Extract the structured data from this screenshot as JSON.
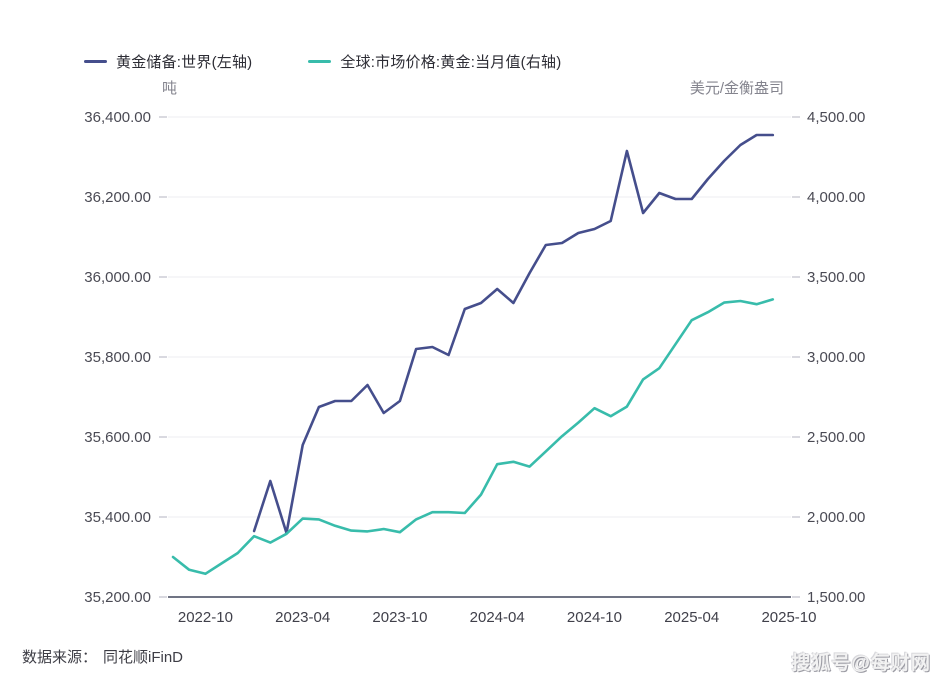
{
  "footer": {
    "source_label": "数据来源：",
    "source_value": "同花顺iFinD",
    "watermark": "搜狐号@每财网"
  },
  "chart_data": {
    "type": "line",
    "title": "",
    "legend_position": "top-left",
    "grid": true,
    "legend": [
      {
        "label": "黄金储备:世界(左轴)",
        "color": "#454e8c"
      },
      {
        "label": "全球:市场价格:黄金:当月值(右轴)",
        "color": "#38bcab"
      }
    ],
    "left_axis": {
      "unit": "吨",
      "min": 35200,
      "max": 36400,
      "tick_values": [
        36400,
        36200,
        36000,
        35800,
        35600,
        35400,
        35200
      ],
      "tick_labels": [
        "36,400.00",
        "36,200.00",
        "36,000.00",
        "35,800.00",
        "35,600.00",
        "35,400.00",
        "35,200.00"
      ]
    },
    "right_axis": {
      "unit": "美元/金衡盎司",
      "min": 1500,
      "max": 4500,
      "tick_values": [
        4500,
        4000,
        3500,
        3000,
        2500,
        2000,
        1500
      ],
      "tick_labels": [
        "4,500.00",
        "4,000.00",
        "3,500.00",
        "3,000.00",
        "2,500.00",
        "2,000.00",
        "1,500.00"
      ]
    },
    "x_axis": {
      "tick_labels": [
        "2022-10",
        "2023-04",
        "2023-10",
        "2024-04",
        "2024-10",
        "2025-04",
        "2025-10"
      ],
      "tick_indices": [
        2,
        8,
        14,
        20,
        26,
        32,
        38
      ]
    },
    "categories": [
      "2022-08",
      "2022-09",
      "2022-10",
      "2022-11",
      "2022-12",
      "2023-01",
      "2023-02",
      "2023-03",
      "2023-04",
      "2023-05",
      "2023-06",
      "2023-07",
      "2023-08",
      "2023-09",
      "2023-10",
      "2023-11",
      "2023-12",
      "2024-01",
      "2024-02",
      "2024-03",
      "2024-04",
      "2024-05",
      "2024-06",
      "2024-07",
      "2024-08",
      "2024-09",
      "2024-10",
      "2024-11",
      "2024-12",
      "2025-01",
      "2025-02",
      "2025-03",
      "2025-04",
      "2025-05",
      "2025-06",
      "2025-07",
      "2025-08",
      "2025-09"
    ],
    "series": [
      {
        "name": "黄金储备:世界(左轴)",
        "axis": "left",
        "color": "#454e8c",
        "values": [
          null,
          null,
          null,
          null,
          null,
          35365,
          35490,
          35360,
          35580,
          35675,
          35690,
          35690,
          35730,
          35660,
          35690,
          35820,
          35825,
          35805,
          35920,
          35935,
          35970,
          35935,
          36010,
          36080,
          36085,
          36110,
          36120,
          36140,
          36315,
          36160,
          36210,
          36195,
          36195,
          36245,
          36290,
          36330,
          36355,
          36355
        ]
      },
      {
        "name": "全球:市场价格:黄金:当月值(右轴)",
        "axis": "right",
        "color": "#38bcab",
        "values": [
          1750,
          1670,
          1645,
          1710,
          1775,
          1880,
          1840,
          1895,
          1990,
          1985,
          1945,
          1915,
          1910,
          1925,
          1905,
          1985,
          2030,
          2030,
          2025,
          2140,
          2330,
          2345,
          2315,
          2410,
          2505,
          2590,
          2680,
          2630,
          2690,
          2860,
          2930,
          3080,
          3230,
          3280,
          3340,
          3350,
          3330,
          3360
        ]
      }
    ],
    "style": {
      "gridline_color": "#ededf2",
      "axis_line_color": "#5c6173",
      "tick_mark_color": "#c9c9d2",
      "line_width": 2.6
    }
  }
}
